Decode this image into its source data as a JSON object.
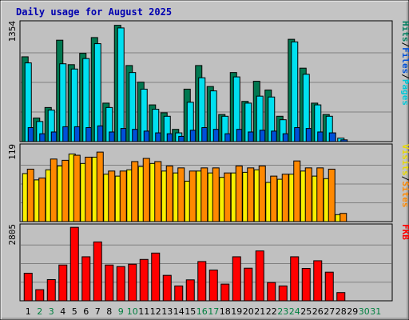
{
  "chart_data": {
    "type": "bar",
    "title": "Daily usage for August 2025",
    "x": [
      "1",
      "2",
      "3",
      "4",
      "5",
      "6",
      "7",
      "8",
      "9",
      "10",
      "11",
      "12",
      "13",
      "14",
      "15",
      "16",
      "17",
      "18",
      "19",
      "20",
      "21",
      "22",
      "23",
      "24",
      "25",
      "26",
      "27",
      "28",
      "29",
      "30",
      "31"
    ],
    "weekend_days": [
      "2",
      "3",
      "9",
      "10",
      "16",
      "17",
      "23",
      "24",
      "30",
      "31"
    ],
    "colors": {
      "hits": "#007850",
      "files": "#00e0f0",
      "pages": "#0050d8",
      "visits": "#f8f000",
      "sites": "#ff8800",
      "kbytes": "#ff0000",
      "weekday_label": "#000000",
      "weekend_label": "#008040"
    },
    "panels": [
      {
        "id": "hits-files-pages",
        "ymax_label": "1354",
        "ymax": 1354,
        "right_labels": [
          {
            "text": "Pages",
            "color": "#00c8d8"
          },
          {
            "text": "/",
            "color": "#000000"
          },
          {
            "text": "Files",
            "color": "#0050d8"
          },
          {
            "text": "/",
            "color": "#000000"
          },
          {
            "text": "Hits",
            "color": "#008060"
          }
        ],
        "series": [
          {
            "name": "Hits",
            "values": [
              970,
              270,
              390,
              1160,
              880,
              1010,
              1190,
              440,
              1330,
              870,
              680,
              420,
              330,
              140,
              600,
              870,
              630,
              310,
              790,
              460,
              690,
              590,
              290,
              1170,
              840,
              440,
              310,
              0,
              0,
              0,
              0
            ]
          },
          {
            "name": "Files",
            "values": [
              900,
              230,
              360,
              890,
              830,
              950,
              1120,
              390,
              1300,
              790,
              600,
              370,
              290,
              100,
              450,
              730,
              580,
              290,
              740,
              440,
              520,
              510,
              250,
              1140,
              770,
              420,
              290,
              40,
              0,
              0,
              0
            ]
          },
          {
            "name": "Pages",
            "values": [
              160,
              90,
              110,
              170,
              170,
              160,
              180,
              110,
              150,
              140,
              120,
              100,
              90,
              60,
              130,
              160,
              140,
              90,
              140,
              110,
              130,
              120,
              90,
              160,
              150,
              110,
              100,
              20,
              0,
              0,
              0
            ]
          }
        ]
      },
      {
        "id": "visits-sites",
        "ymax_label": "119",
        "ymax": 119,
        "right_labels": [
          {
            "text": "Sites",
            "color": "#ff8800"
          },
          {
            "text": "/",
            "color": "#000000"
          },
          {
            "text": "Visits",
            "color": "#e8d800"
          }
        ],
        "series": [
          {
            "name": "Visits",
            "values": [
              76,
              66,
              82,
              88,
              107,
              92,
              102,
              75,
              72,
              82,
              87,
              92,
              80,
              77,
              64,
              80,
              77,
              70,
              77,
              78,
              82,
              62,
              67,
              75,
              80,
              72,
              68,
              11,
              0,
              0,
              0
            ]
          },
          {
            "name": "Sites",
            "values": [
              83,
              69,
              99,
              97,
              105,
              102,
              110,
              80,
              80,
              95,
              100,
              95,
              88,
              85,
              80,
              85,
              85,
              77,
              88,
              85,
              88,
              72,
              75,
              96,
              85,
              85,
              83,
              13,
              0,
              0,
              0
            ]
          }
        ]
      },
      {
        "id": "kbytes",
        "ymax_label": "2805",
        "ymax": 2805,
        "right_labels": [
          {
            "text": "KB",
            "color": "#ff0000"
          },
          {
            "text": "F",
            "color": "#ff0000"
          }
        ],
        "series": [
          {
            "name": "KB F",
            "values": [
              1040,
              420,
              800,
              1350,
              2770,
              1660,
              2220,
              1350,
              1290,
              1380,
              1560,
              1800,
              960,
              560,
              790,
              1480,
              1160,
              630,
              1660,
              1230,
              1880,
              690,
              560,
              1660,
              1220,
              1510,
              1080,
              310,
              0,
              0,
              0
            ]
          }
        ]
      }
    ]
  }
}
